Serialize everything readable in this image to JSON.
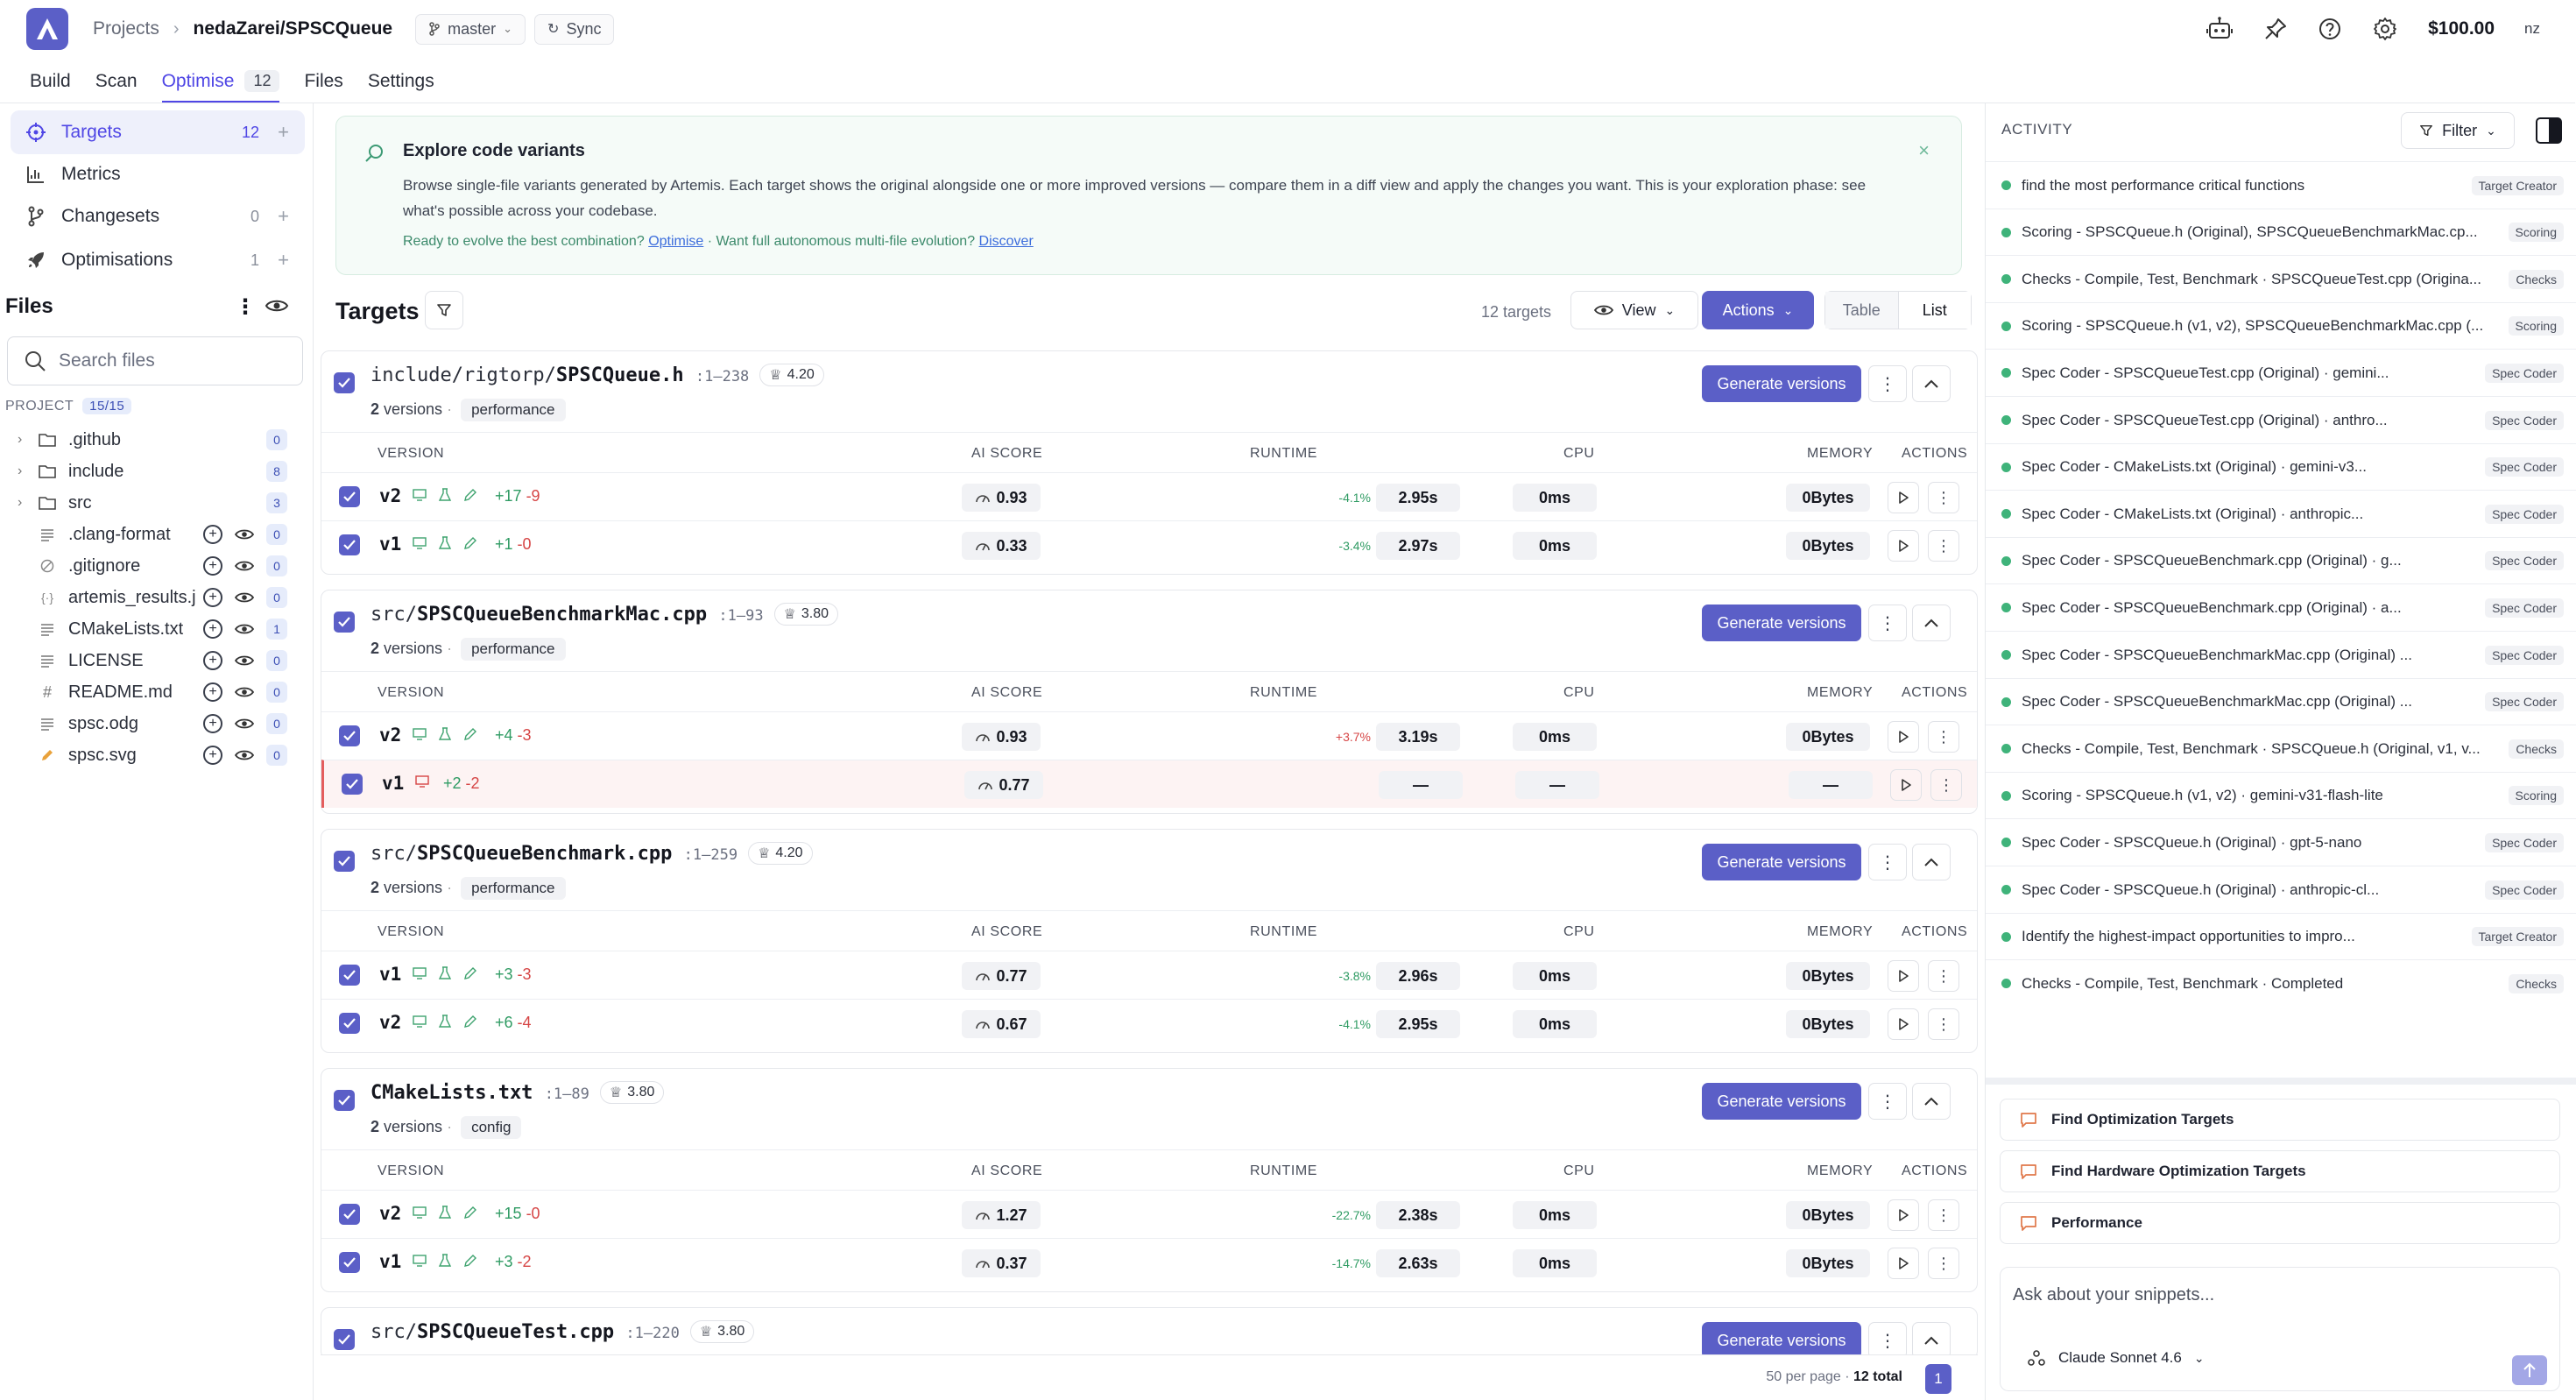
{
  "header": {
    "crumb_projects": "Projects",
    "crumb_sep": "›",
    "repo": "nedaZarei/SPSCQueue",
    "branch": "master",
    "sync": "Sync",
    "credit": "$100.00",
    "user": "nz"
  },
  "nav": {
    "tabs": [
      {
        "label": "Build"
      },
      {
        "label": "Scan"
      },
      {
        "label": "Optimise",
        "count": "12"
      },
      {
        "label": "Files"
      },
      {
        "label": "Settings"
      }
    ]
  },
  "sidebar": {
    "items": [
      {
        "label": "Targets",
        "count": "12",
        "plus": "+"
      },
      {
        "label": "Metrics"
      },
      {
        "label": "Changesets",
        "count": "0",
        "plus": "+"
      },
      {
        "label": "Optimisations",
        "count": "1",
        "plus": "+"
      }
    ],
    "files_title": "Files",
    "search_placeholder": "Search files",
    "project_label": "PROJECT",
    "project_count": "15/15",
    "files": [
      {
        "name": ".github",
        "count": "0"
      },
      {
        "name": "include",
        "count": "8"
      },
      {
        "name": "src",
        "count": "3"
      },
      {
        "name": ".clang-format",
        "count": "0"
      },
      {
        "name": ".gitignore",
        "count": "0"
      },
      {
        "name": "artemis_results.j",
        "count": "0"
      },
      {
        "name": "CMakeLists.txt",
        "count": "1"
      },
      {
        "name": "LICENSE",
        "count": "0"
      },
      {
        "name": "README.md",
        "count": "0"
      },
      {
        "name": "spsc.odg",
        "count": "0"
      },
      {
        "name": "spsc.svg",
        "count": "0"
      }
    ]
  },
  "banner": {
    "title": "Explore code variants",
    "desc": "Browse single-file variants generated by Artemis. Each target shows the original alongside one or more improved versions — compare them in a diff view and apply the changes you want. This is your exploration phase: see what's possible across your codebase.",
    "line_a": "Ready to evolve the best combination?",
    "link_a": "Optimise",
    "line_b": " · Want full autonomous multi-file evolution?",
    "link_b": "Discover",
    "close": "×"
  },
  "targets": {
    "title": "Targets",
    "count_text": "12 targets",
    "view": "View",
    "actions": "Actions",
    "seg_table": "Table",
    "seg_list": "List",
    "col_version": "VERSION",
    "col_ai": "AI SCORE",
    "col_runtime": "RUNTIME",
    "col_cpu": "CPU",
    "col_memory": "MEMORY",
    "col_actions": "ACTIONS",
    "generate": "Generate versions",
    "cards": [
      {
        "dir": "include/rigtorp/",
        "file": "SPSCQueue.h",
        "range": ":1–238",
        "score": "4.20",
        "versions": "2",
        "versions_label": "versions",
        "tag": "performance",
        "rows": [
          {
            "v": "v2",
            "plus": "+17",
            "minus": "-9",
            "ai": "0.93",
            "pct": "-4.1%",
            "rt": "2.95s",
            "cpu": "0ms",
            "mem": "0Bytes"
          },
          {
            "v": "v1",
            "plus": "+1",
            "minus": "-0",
            "ai": "0.33",
            "pct": "-3.4%",
            "rt": "2.97s",
            "cpu": "0ms",
            "mem": "0Bytes"
          }
        ]
      },
      {
        "dir": "src/",
        "file": "SPSCQueueBenchmarkMac.cpp",
        "range": ":1–93",
        "score": "3.80",
        "versions": "2",
        "versions_label": "versions",
        "tag": "performance",
        "rows": [
          {
            "v": "v2",
            "plus": "+4",
            "minus": "-3",
            "ai": "0.93",
            "pct": "+3.7%",
            "rt": "3.19s",
            "cpu": "0ms",
            "mem": "0Bytes"
          },
          {
            "v": "v1",
            "plus": "+2",
            "minus": "-2",
            "ai": "0.77",
            "pct": "",
            "rt": "—",
            "cpu": "—",
            "mem": "—",
            "warn": true
          }
        ]
      },
      {
        "dir": "src/",
        "file": "SPSCQueueBenchmark.cpp",
        "range": ":1–259",
        "score": "4.20",
        "versions": "2",
        "versions_label": "versions",
        "tag": "performance",
        "rows": [
          {
            "v": "v1",
            "plus": "+3",
            "minus": "-3",
            "ai": "0.77",
            "pct": "-3.8%",
            "rt": "2.96s",
            "cpu": "0ms",
            "mem": "0Bytes"
          },
          {
            "v": "v2",
            "plus": "+6",
            "minus": "-4",
            "ai": "0.67",
            "pct": "-4.1%",
            "rt": "2.95s",
            "cpu": "0ms",
            "mem": "0Bytes"
          }
        ]
      },
      {
        "dir": "",
        "file": "CMakeLists.txt",
        "range": ":1–89",
        "score": "3.80",
        "versions": "2",
        "versions_label": "versions",
        "tag": "config",
        "rows": [
          {
            "v": "v2",
            "plus": "+15",
            "minus": "-0",
            "ai": "1.27",
            "pct": "-22.7%",
            "rt": "2.38s",
            "cpu": "0ms",
            "mem": "0Bytes"
          },
          {
            "v": "v1",
            "plus": "+3",
            "minus": "-2",
            "ai": "0.37",
            "pct": "-14.7%",
            "rt": "2.63s",
            "cpu": "0ms",
            "mem": "0Bytes"
          }
        ]
      },
      {
        "dir": "src/",
        "file": "SPSCQueueTest.cpp",
        "range": ":1–220",
        "score": "3.80",
        "versions": "",
        "versions_label": "",
        "tag": "",
        "rows": []
      }
    ],
    "pager_text": "50 per page · ",
    "pager_total": "12 total",
    "page": "1"
  },
  "activity": {
    "title": "ACTIVITY",
    "filter": "Filter",
    "items": [
      {
        "text": "find the most performance critical functions",
        "badge": "Target Creator"
      },
      {
        "text": "Scoring - SPSCQueue.h (Original), SPSCQueueBenchmarkMac.cp...",
        "badge": "Scoring"
      },
      {
        "text": "Checks - Compile, Test, Benchmark · SPSCQueueTest.cpp (Origina...",
        "badge": "Checks"
      },
      {
        "text": "Scoring - SPSCQueue.h (v1, v2), SPSCQueueBenchmarkMac.cpp (...",
        "badge": "Scoring"
      },
      {
        "text": "Spec Coder - SPSCQueueTest.cpp (Original) · gemini...",
        "badge": "Spec Coder"
      },
      {
        "text": "Spec Coder - SPSCQueueTest.cpp (Original) · anthro...",
        "badge": "Spec Coder"
      },
      {
        "text": "Spec Coder - CMakeLists.txt (Original) · gemini-v3...",
        "badge": "Spec Coder"
      },
      {
        "text": "Spec Coder - CMakeLists.txt (Original) · anthropic...",
        "badge": "Spec Coder"
      },
      {
        "text": "Spec Coder - SPSCQueueBenchmark.cpp (Original) · g...",
        "badge": "Spec Coder"
      },
      {
        "text": "Spec Coder - SPSCQueueBenchmark.cpp (Original) · a...",
        "badge": "Spec Coder"
      },
      {
        "text": "Spec Coder - SPSCQueueBenchmarkMac.cpp (Original) ...",
        "badge": "Spec Coder"
      },
      {
        "text": "Spec Coder - SPSCQueueBenchmarkMac.cpp (Original) ...",
        "badge": "Spec Coder"
      },
      {
        "text": "Checks - Compile, Test, Benchmark · SPSCQueue.h (Original, v1, v...",
        "badge": "Checks"
      },
      {
        "text": "Scoring - SPSCQueue.h (v1, v2) · gemini-v31-flash-lite",
        "badge": "Scoring"
      },
      {
        "text": "Spec Coder - SPSCQueue.h (Original) · gpt-5-nano",
        "badge": "Spec Coder"
      },
      {
        "text": "Spec Coder - SPSCQueue.h (Original) · anthropic-cl...",
        "badge": "Spec Coder"
      },
      {
        "text": "Identify the highest-impact opportunities to impro...",
        "badge": "Target Creator"
      },
      {
        "text": "Checks - Compile, Test, Benchmark · Completed",
        "badge": "Checks"
      }
    ],
    "suggestions": [
      "Find Optimization Targets",
      "Find Hardware Optimization Targets",
      "Performance"
    ],
    "chat_placeholder": "Ask about your snippets...",
    "model": "Claude Sonnet 4.6"
  }
}
